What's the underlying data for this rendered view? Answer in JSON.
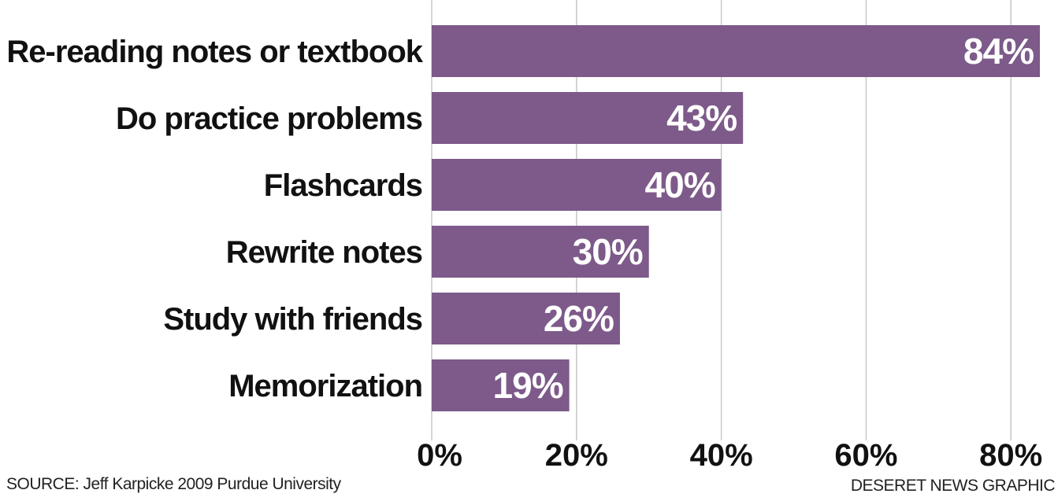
{
  "colors": {
    "bar": "#7d5a8a",
    "grid": "#c8c8c8",
    "text": "#111111",
    "bar_text": "#ffffff"
  },
  "chart_data": {
    "type": "bar",
    "orientation": "horizontal",
    "categories": [
      "Re-reading notes or textbook",
      "Do practice problems",
      "Flashcards",
      "Rewrite notes",
      "Study with friends",
      "Memorization"
    ],
    "values": [
      84,
      43,
      40,
      30,
      26,
      19
    ],
    "value_labels": [
      "84%",
      "43%",
      "40%",
      "30%",
      "26%",
      "19%"
    ],
    "x_ticks": [
      0,
      20,
      40,
      60,
      80
    ],
    "x_tick_labels": [
      "0%",
      "20%",
      "40%",
      "60%",
      "80%"
    ],
    "xlim": [
      0,
      84
    ],
    "grid": true
  },
  "footer": {
    "source": "SOURCE: Jeff Karpicke 2009 Purdue University",
    "credit": "DESERET NEWS GRAPHIC"
  }
}
